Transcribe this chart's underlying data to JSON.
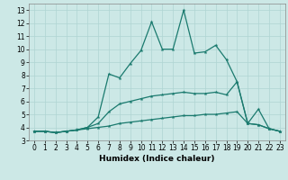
{
  "xlabel": "Humidex (Indice chaleur)",
  "bg_color": "#cce8e6",
  "grid_color": "#afd4d2",
  "line_color": "#1a7a6e",
  "x": [
    0,
    1,
    2,
    3,
    4,
    5,
    6,
    7,
    8,
    9,
    10,
    11,
    12,
    13,
    14,
    15,
    16,
    17,
    18,
    19,
    20,
    21,
    22,
    23
  ],
  "line1": [
    3.7,
    3.7,
    3.6,
    3.7,
    3.8,
    4.0,
    4.8,
    8.1,
    7.8,
    8.9,
    9.9,
    12.1,
    10.0,
    10.0,
    13.0,
    9.7,
    9.8,
    10.3,
    9.2,
    7.5,
    4.3,
    5.4,
    3.9,
    3.7
  ],
  "line2": [
    3.7,
    3.7,
    3.6,
    3.7,
    3.8,
    4.0,
    4.3,
    5.2,
    5.8,
    6.0,
    6.2,
    6.4,
    6.5,
    6.6,
    6.7,
    6.6,
    6.6,
    6.7,
    6.5,
    7.5,
    4.3,
    4.2,
    3.9,
    3.7
  ],
  "line3": [
    3.7,
    3.7,
    3.6,
    3.7,
    3.8,
    3.9,
    4.0,
    4.1,
    4.3,
    4.4,
    4.5,
    4.6,
    4.7,
    4.8,
    4.9,
    4.9,
    5.0,
    5.0,
    5.1,
    5.2,
    4.3,
    4.2,
    3.9,
    3.7
  ],
  "ylim": [
    3.0,
    13.5
  ],
  "xlim": [
    -0.5,
    23.5
  ],
  "yticks": [
    3,
    4,
    5,
    6,
    7,
    8,
    9,
    10,
    11,
    12,
    13
  ],
  "xticks": [
    0,
    1,
    2,
    3,
    4,
    5,
    6,
    7,
    8,
    9,
    10,
    11,
    12,
    13,
    14,
    15,
    16,
    17,
    18,
    19,
    20,
    21,
    22,
    23
  ],
  "xlabel_fontsize": 6.5,
  "tick_fontsize": 5.5,
  "linewidth": 0.9,
  "markersize": 3
}
